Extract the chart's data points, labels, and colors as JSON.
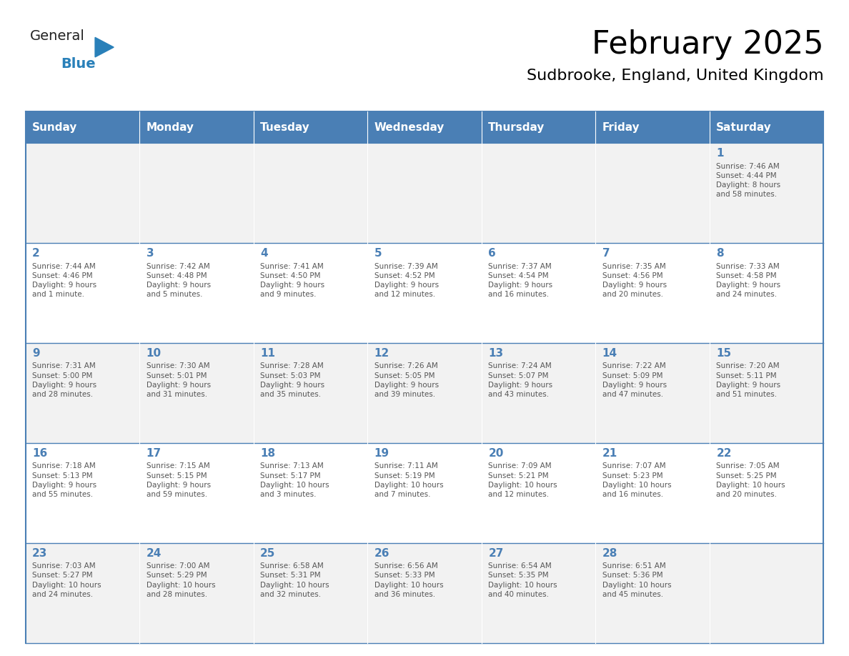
{
  "title": "February 2025",
  "subtitle": "Sudbrooke, England, United Kingdom",
  "header_color": "#4a7fb5",
  "header_text_color": "#ffffff",
  "cell_bg_even": "#f2f2f2",
  "cell_bg_odd": "#ffffff",
  "day_number_color": "#4a7fb5",
  "text_color": "#555555",
  "border_color": "#4a7fb5",
  "days_of_week": [
    "Sunday",
    "Monday",
    "Tuesday",
    "Wednesday",
    "Thursday",
    "Friday",
    "Saturday"
  ],
  "weeks": [
    [
      {
        "day": null,
        "info": null
      },
      {
        "day": null,
        "info": null
      },
      {
        "day": null,
        "info": null
      },
      {
        "day": null,
        "info": null
      },
      {
        "day": null,
        "info": null
      },
      {
        "day": null,
        "info": null
      },
      {
        "day": 1,
        "info": "Sunrise: 7:46 AM\nSunset: 4:44 PM\nDaylight: 8 hours\nand 58 minutes."
      }
    ],
    [
      {
        "day": 2,
        "info": "Sunrise: 7:44 AM\nSunset: 4:46 PM\nDaylight: 9 hours\nand 1 minute."
      },
      {
        "day": 3,
        "info": "Sunrise: 7:42 AM\nSunset: 4:48 PM\nDaylight: 9 hours\nand 5 minutes."
      },
      {
        "day": 4,
        "info": "Sunrise: 7:41 AM\nSunset: 4:50 PM\nDaylight: 9 hours\nand 9 minutes."
      },
      {
        "day": 5,
        "info": "Sunrise: 7:39 AM\nSunset: 4:52 PM\nDaylight: 9 hours\nand 12 minutes."
      },
      {
        "day": 6,
        "info": "Sunrise: 7:37 AM\nSunset: 4:54 PM\nDaylight: 9 hours\nand 16 minutes."
      },
      {
        "day": 7,
        "info": "Sunrise: 7:35 AM\nSunset: 4:56 PM\nDaylight: 9 hours\nand 20 minutes."
      },
      {
        "day": 8,
        "info": "Sunrise: 7:33 AM\nSunset: 4:58 PM\nDaylight: 9 hours\nand 24 minutes."
      }
    ],
    [
      {
        "day": 9,
        "info": "Sunrise: 7:31 AM\nSunset: 5:00 PM\nDaylight: 9 hours\nand 28 minutes."
      },
      {
        "day": 10,
        "info": "Sunrise: 7:30 AM\nSunset: 5:01 PM\nDaylight: 9 hours\nand 31 minutes."
      },
      {
        "day": 11,
        "info": "Sunrise: 7:28 AM\nSunset: 5:03 PM\nDaylight: 9 hours\nand 35 minutes."
      },
      {
        "day": 12,
        "info": "Sunrise: 7:26 AM\nSunset: 5:05 PM\nDaylight: 9 hours\nand 39 minutes."
      },
      {
        "day": 13,
        "info": "Sunrise: 7:24 AM\nSunset: 5:07 PM\nDaylight: 9 hours\nand 43 minutes."
      },
      {
        "day": 14,
        "info": "Sunrise: 7:22 AM\nSunset: 5:09 PM\nDaylight: 9 hours\nand 47 minutes."
      },
      {
        "day": 15,
        "info": "Sunrise: 7:20 AM\nSunset: 5:11 PM\nDaylight: 9 hours\nand 51 minutes."
      }
    ],
    [
      {
        "day": 16,
        "info": "Sunrise: 7:18 AM\nSunset: 5:13 PM\nDaylight: 9 hours\nand 55 minutes."
      },
      {
        "day": 17,
        "info": "Sunrise: 7:15 AM\nSunset: 5:15 PM\nDaylight: 9 hours\nand 59 minutes."
      },
      {
        "day": 18,
        "info": "Sunrise: 7:13 AM\nSunset: 5:17 PM\nDaylight: 10 hours\nand 3 minutes."
      },
      {
        "day": 19,
        "info": "Sunrise: 7:11 AM\nSunset: 5:19 PM\nDaylight: 10 hours\nand 7 minutes."
      },
      {
        "day": 20,
        "info": "Sunrise: 7:09 AM\nSunset: 5:21 PM\nDaylight: 10 hours\nand 12 minutes."
      },
      {
        "day": 21,
        "info": "Sunrise: 7:07 AM\nSunset: 5:23 PM\nDaylight: 10 hours\nand 16 minutes."
      },
      {
        "day": 22,
        "info": "Sunrise: 7:05 AM\nSunset: 5:25 PM\nDaylight: 10 hours\nand 20 minutes."
      }
    ],
    [
      {
        "day": 23,
        "info": "Sunrise: 7:03 AM\nSunset: 5:27 PM\nDaylight: 10 hours\nand 24 minutes."
      },
      {
        "day": 24,
        "info": "Sunrise: 7:00 AM\nSunset: 5:29 PM\nDaylight: 10 hours\nand 28 minutes."
      },
      {
        "day": 25,
        "info": "Sunrise: 6:58 AM\nSunset: 5:31 PM\nDaylight: 10 hours\nand 32 minutes."
      },
      {
        "day": 26,
        "info": "Sunrise: 6:56 AM\nSunset: 5:33 PM\nDaylight: 10 hours\nand 36 minutes."
      },
      {
        "day": 27,
        "info": "Sunrise: 6:54 AM\nSunset: 5:35 PM\nDaylight: 10 hours\nand 40 minutes."
      },
      {
        "day": 28,
        "info": "Sunrise: 6:51 AM\nSunset: 5:36 PM\nDaylight: 10 hours\nand 45 minutes."
      },
      {
        "day": null,
        "info": null
      }
    ]
  ],
  "logo_text_general": "General",
  "logo_text_blue": "Blue",
  "logo_color_general": "#222222",
  "logo_color_blue": "#2980b9",
  "logo_triangle_color": "#2980b9"
}
